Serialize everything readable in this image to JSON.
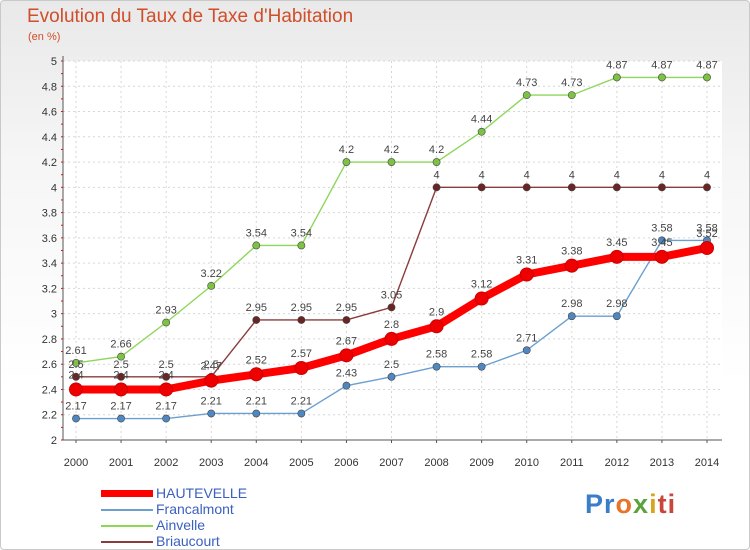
{
  "chart_data": {
    "type": "line",
    "title": "Evolution du Taux de Taxe d'Habitation",
    "subtitle": "(en %)",
    "x": [
      "2000",
      "2001",
      "2002",
      "2003",
      "2004",
      "2005",
      "2006",
      "2007",
      "2008",
      "2009",
      "2010",
      "2011",
      "2012",
      "2013",
      "2014"
    ],
    "ylim": [
      2,
      5
    ],
    "yticks": [
      "2",
      "2.2",
      "2.4",
      "2.6",
      "2.8",
      "3",
      "3.2",
      "3.4",
      "3.6",
      "3.8",
      "4",
      "4.2",
      "4.4",
      "4.6",
      "4.8",
      "5"
    ],
    "grid": true,
    "legend_position": "bottom-left",
    "series": [
      {
        "name": "Ainvelle",
        "color": "#8ed65a",
        "dot": "#7cc243",
        "values": [
          2.61,
          2.66,
          2.93,
          3.22,
          3.54,
          3.54,
          4.2,
          4.2,
          4.2,
          4.44,
          4.73,
          4.73,
          4.87,
          4.87,
          4.87
        ],
        "labels": [
          "2.61",
          "2.66",
          "2.93",
          "3.22",
          "3.54",
          "3.54",
          "4.2",
          "4.2",
          "4.2",
          "4.44",
          "4.73",
          "4.73",
          "4.87",
          "4.87",
          "4.87"
        ]
      },
      {
        "name": "Briaucourt",
        "color": "#8a3b3b",
        "dot": "#6b2424",
        "values": [
          2.5,
          2.5,
          2.5,
          2.5,
          2.95,
          2.95,
          2.95,
          3.05,
          4,
          4,
          4,
          4,
          4,
          4,
          4
        ],
        "labels": [
          "2.5",
          "2.5",
          "2.5",
          "2.5",
          "2.95",
          "2.95",
          "2.95",
          "3.05",
          "4",
          "4",
          "4",
          "4",
          "4",
          "4",
          "4"
        ]
      },
      {
        "name": "Francalmont",
        "color": "#6a9fd0",
        "dot": "#4f87c0",
        "values": [
          2.17,
          2.17,
          2.17,
          2.21,
          2.21,
          2.21,
          2.43,
          2.5,
          2.58,
          2.58,
          2.71,
          2.98,
          2.98,
          3.58,
          3.58
        ],
        "labels": [
          "2.17",
          "2.17",
          "2.17",
          "2.21",
          "2.21",
          "2.21",
          "2.43",
          "2.5",
          "2.58",
          "2.58",
          "2.71",
          "2.98",
          "2.98",
          "3.58",
          "3.58"
        ]
      },
      {
        "name": "HAUTEVELLE",
        "color": "#ff0000",
        "dot": "#ee0000",
        "values": [
          2.4,
          2.4,
          2.4,
          2.47,
          2.52,
          2.57,
          2.67,
          2.8,
          2.9,
          3.12,
          3.31,
          3.38,
          3.45,
          3.45,
          3.52
        ],
        "labels": [
          "2.4",
          "2.4",
          "2.4",
          "2.47",
          "2.52",
          "2.57",
          "2.67",
          "2.8",
          "2.9",
          "3.12",
          "3.31",
          "3.38",
          "3.45",
          "3.45",
          "3.52"
        ]
      }
    ]
  },
  "legend": [
    {
      "label": "HAUTEVELLE",
      "color": "#ff0000"
    },
    {
      "label": "Francalmont",
      "color": "#6a9fd0"
    },
    {
      "label": "Ainvelle",
      "color": "#8ed65a"
    },
    {
      "label": "Briaucourt",
      "color": "#8a3b3b"
    }
  ],
  "logo": {
    "p1": "Pr",
    "p2": "o",
    "p3": "x",
    "p4": "i",
    "p5": "ti"
  }
}
